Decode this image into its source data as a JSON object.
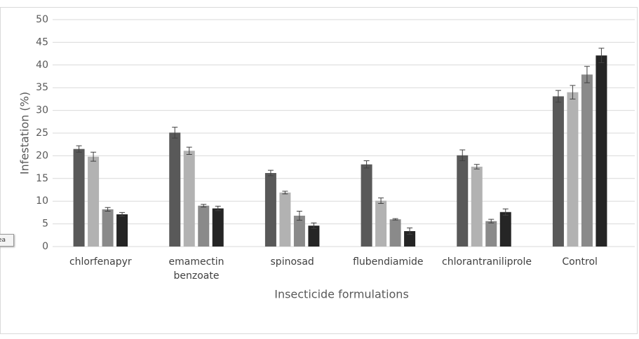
{
  "chart_data": {
    "type": "bar",
    "x_label": "Insecticide formulations",
    "y_label": "Infestation (%)",
    "annotation": "ea",
    "categories": [
      "chlorfenapyr",
      "emamectin benzoate",
      "spinosad",
      "flubendiamide",
      "chlorantraniliprole",
      "Control"
    ],
    "series": [
      {
        "color": "#595959",
        "values": [
          21.5,
          25.1,
          16.2,
          18.1,
          20.1,
          33.1
        ],
        "errors": [
          0.7,
          1.2,
          0.6,
          0.8,
          1.2,
          1.3
        ]
      },
      {
        "color": "#b2b2b2",
        "values": [
          19.8,
          21.1,
          11.9,
          10.1,
          17.6,
          34.0
        ],
        "errors": [
          1.0,
          0.8,
          0.3,
          0.6,
          0.5,
          1.5
        ]
      },
      {
        "color": "#8a8a8a",
        "values": [
          8.2,
          9.0,
          6.8,
          6.0,
          5.6,
          37.9
        ],
        "errors": [
          0.4,
          0.3,
          1.0,
          0.15,
          0.4,
          1.8
        ]
      },
      {
        "color": "#252525",
        "values": [
          7.1,
          8.4,
          4.6,
          3.4,
          7.6,
          42.1
        ],
        "errors": [
          0.4,
          0.5,
          0.6,
          0.7,
          0.7,
          1.6
        ]
      }
    ],
    "ylim": [
      0,
      50
    ],
    "yticks": [
      0,
      5,
      10,
      15,
      20,
      25,
      30,
      35,
      40,
      45,
      50
    ],
    "grid": true
  }
}
